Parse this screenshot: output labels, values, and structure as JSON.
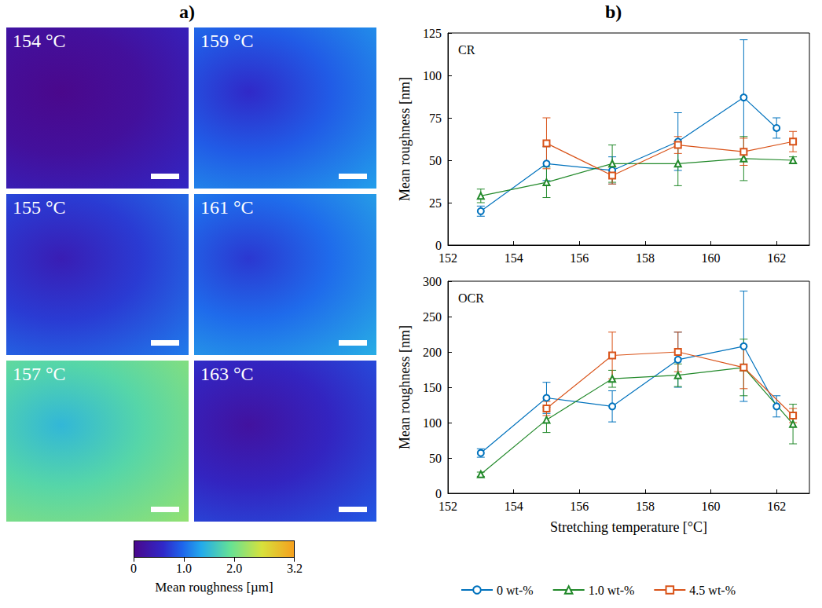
{
  "figure": {
    "panel_labels": {
      "a": "a)",
      "b": "b)"
    },
    "images": [
      {
        "label": "154 °C",
        "value": 0.15
      },
      {
        "label": "159 °C",
        "value": 0.9
      },
      {
        "label": "155 °C",
        "value": 0.7
      },
      {
        "label": "161 °C",
        "value": 1.0
      },
      {
        "label": "157 °C",
        "value": 1.8
      },
      {
        "label": "163 °C",
        "value": 0.5
      }
    ],
    "colorbar": {
      "range": [
        0,
        3.2
      ],
      "ticks": [
        0,
        {
          "value": 1,
          "label": "1.0"
        },
        {
          "value": 2,
          "label": "2.0"
        },
        3.2
      ],
      "label": "Mean roughness [µm]"
    }
  },
  "chart_data": [
    {
      "type": "line",
      "title": "CR",
      "ylabel": "Mean roughness [nm]",
      "xlim": [
        152,
        163
      ],
      "xticks": [
        152,
        154,
        156,
        158,
        160,
        162
      ],
      "ylim": [
        0,
        125
      ],
      "yticks": [
        0,
        25,
        50,
        75,
        100,
        125
      ],
      "grid": false,
      "legend": "bottom",
      "series": [
        {
          "name": "0 wt-%",
          "color": "#0072bd",
          "marker": "circle",
          "x": [
            153,
            155,
            157,
            159,
            161,
            162
          ],
          "values": [
            20,
            48,
            44,
            61,
            87,
            69
          ],
          "errors": [
            3,
            10,
            8,
            17,
            34,
            6
          ]
        },
        {
          "name": "1.0 wt-%",
          "color": "#22892a",
          "marker": "triangle",
          "x": [
            153,
            155,
            157,
            159,
            161,
            162.5
          ],
          "values": [
            29,
            37,
            48,
            48,
            51,
            50
          ],
          "errors": [
            4,
            9,
            11,
            13,
            13,
            2
          ]
        },
        {
          "name": "4.5 wt-%",
          "color": "#d95319",
          "marker": "square",
          "x": [
            155,
            157,
            159,
            161,
            162.5
          ],
          "values": [
            60,
            41,
            59,
            55,
            61
          ],
          "errors": [
            15,
            5,
            5,
            8,
            6
          ]
        }
      ]
    },
    {
      "type": "line",
      "title": "OCR",
      "xlabel": "Stretching temperature [°C]",
      "ylabel": "Mean roughness [nm]",
      "xlim": [
        152,
        163
      ],
      "xticks": [
        152,
        154,
        156,
        158,
        160,
        162
      ],
      "ylim": [
        0,
        300
      ],
      "yticks": [
        0,
        50,
        100,
        150,
        200,
        250,
        300
      ],
      "grid": false,
      "legend": "bottom",
      "series": [
        {
          "name": "0 wt-%",
          "color": "#0072bd",
          "marker": "circle",
          "x": [
            153,
            155,
            157,
            159,
            161,
            162
          ],
          "values": [
            57,
            135,
            123,
            189,
            208,
            123
          ],
          "errors": [
            6,
            22,
            22,
            39,
            78,
            15
          ]
        },
        {
          "name": "1.0 wt-%",
          "color": "#22892a",
          "marker": "triangle",
          "x": [
            153,
            155,
            157,
            159,
            161,
            162.5
          ],
          "values": [
            27,
            104,
            162,
            167,
            178,
            98
          ],
          "errors": [
            3,
            18,
            12,
            16,
            40,
            28
          ]
        },
        {
          "name": "4.5 wt-%",
          "color": "#d95319",
          "marker": "square",
          "x": [
            155,
            157,
            159,
            161,
            162.5
          ],
          "values": [
            120,
            195,
            200,
            178,
            110
          ],
          "errors": [
            10,
            33,
            28,
            30,
            10
          ]
        }
      ]
    }
  ]
}
